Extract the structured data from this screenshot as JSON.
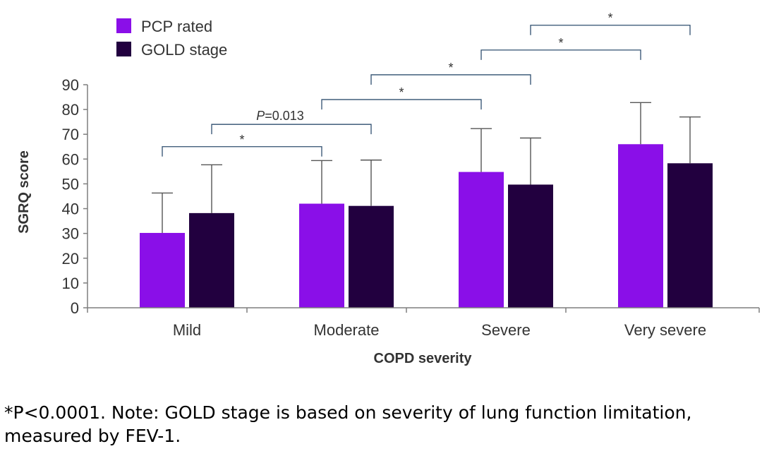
{
  "chart_data": {
    "type": "bar",
    "xlabel": "COPD severity",
    "ylabel": "SGRQ score",
    "ylim": [
      0,
      90
    ],
    "yticks": [
      0,
      10,
      20,
      30,
      40,
      50,
      60,
      70,
      80,
      90
    ],
    "grid": false,
    "legend_position": "top-left",
    "categories": [
      "Mild",
      "Moderate",
      "Severe",
      "Very severe"
    ],
    "series": [
      {
        "name": "PCP rated",
        "color": "#8a0fe8",
        "values": [
          30.2,
          42.0,
          54.8,
          66.0
        ],
        "error_upper": [
          46.3,
          59.4,
          72.3,
          82.8
        ]
      },
      {
        "name": "GOLD stage",
        "color": "#22003f",
        "values": [
          38.2,
          41.1,
          49.7,
          58.3
        ],
        "error_upper": [
          57.7,
          59.6,
          68.5,
          77.0
        ]
      }
    ],
    "significance": [
      {
        "from": [
          0,
          0
        ],
        "to": [
          1,
          0
        ],
        "label": "*",
        "level": 65
      },
      {
        "from": [
          0,
          1
        ],
        "to": [
          1,
          1
        ],
        "label_prefix": "P",
        "label_suffix": "=0.013",
        "level": 74
      },
      {
        "from": [
          1,
          0
        ],
        "to": [
          2,
          0
        ],
        "label": "*",
        "level": 84
      },
      {
        "from": [
          1,
          1
        ],
        "to": [
          2,
          1
        ],
        "label": "*",
        "level": 94
      },
      {
        "from": [
          2,
          0
        ],
        "to": [
          3,
          0
        ],
        "label": "*",
        "level": 104
      },
      {
        "from": [
          2,
          1
        ],
        "to": [
          3,
          1
        ],
        "label": "*",
        "level": 114
      }
    ]
  },
  "footnote": "*P<0.0001. Note: GOLD stage is based on severity of lung function limitation, measured by FEV-1."
}
